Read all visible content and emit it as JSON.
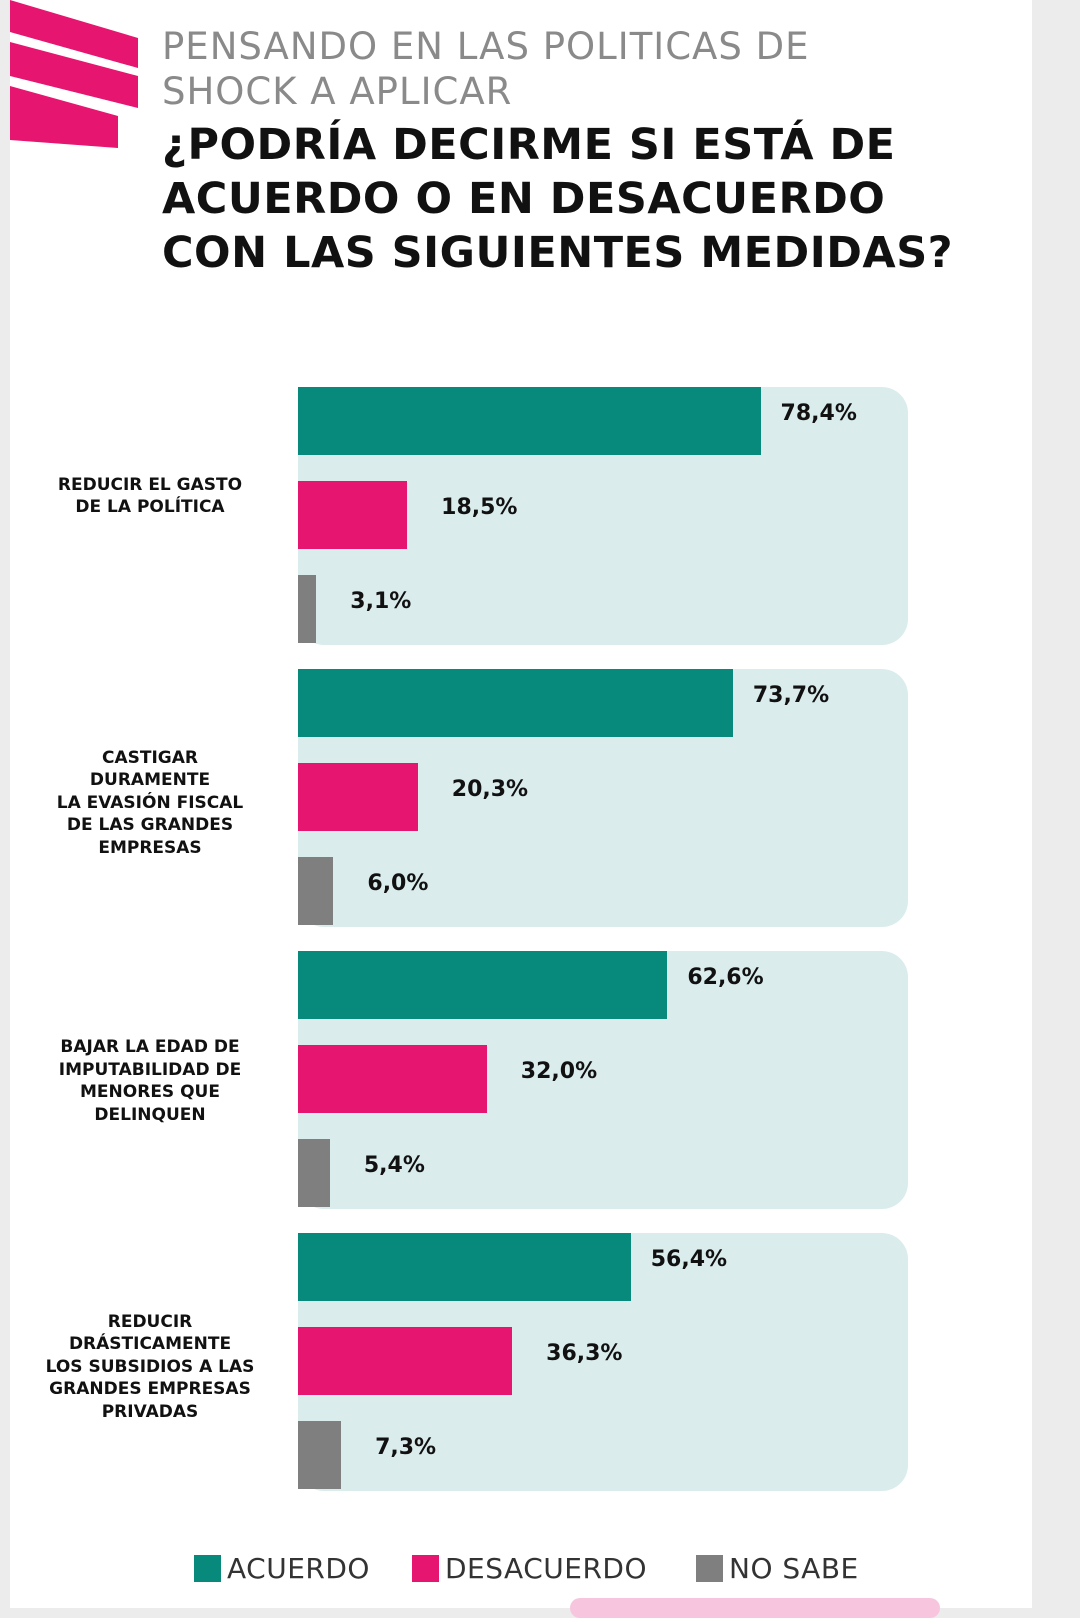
{
  "header": {
    "subtitle_line1": "PENSANDO EN LAS POLITICAS DE",
    "subtitle_line2": "SHOCK A APLICAR",
    "title_line1": "¿PODRÍA DECIRME SI ESTÁ DE",
    "title_line2": "ACUERDO O EN DESACUERDO",
    "title_line3": "CON LAS SIGUIENTES MEDIDAS?"
  },
  "colors": {
    "acuerdo": "#078a7b",
    "desacuerdo": "#e6156f",
    "no_sabe": "#7f7f7f",
    "panel": "#dbeced",
    "logo": "#e6156f"
  },
  "logo": {
    "icon": "brand-stripes-icon"
  },
  "chart_data": {
    "type": "bar",
    "orientation": "horizontal",
    "categories": [
      [
        "REDUCIR EL GASTO",
        "DE LA POLÍTICA"
      ],
      [
        "CASTIGAR",
        "DURAMENTE",
        "LA EVASIÓN FISCAL",
        "DE LAS GRANDES",
        "EMPRESAS"
      ],
      [
        "BAJAR LA EDAD DE",
        "IMPUTABILIDAD DE",
        "MENORES QUE",
        "DELINQUEN"
      ],
      [
        "REDUCIR",
        "DRÁSTICAMENTE",
        "LOS SUBSIDIOS A LAS",
        "GRANDES EMPRESAS",
        "PRIVADAS"
      ]
    ],
    "series": [
      {
        "name": "ACUERDO",
        "values": [
          78.4,
          73.7,
          62.6,
          56.4
        ],
        "labels": [
          "78,4%",
          "73,7%",
          "62,6%",
          "56,4%"
        ]
      },
      {
        "name": "DESACUERDO",
        "values": [
          18.5,
          20.3,
          32.0,
          36.3
        ],
        "labels": [
          "18,5%",
          "20,3%",
          "32,0%",
          "36,3%"
        ]
      },
      {
        "name": "NO SABE",
        "values": [
          3.1,
          6.0,
          5.4,
          7.3
        ],
        "labels": [
          "3,1%",
          "6,0%",
          "5,4%",
          "7,3%"
        ]
      }
    ],
    "xlim": [
      0,
      100
    ],
    "grid": false,
    "legend_position": "bottom"
  }
}
